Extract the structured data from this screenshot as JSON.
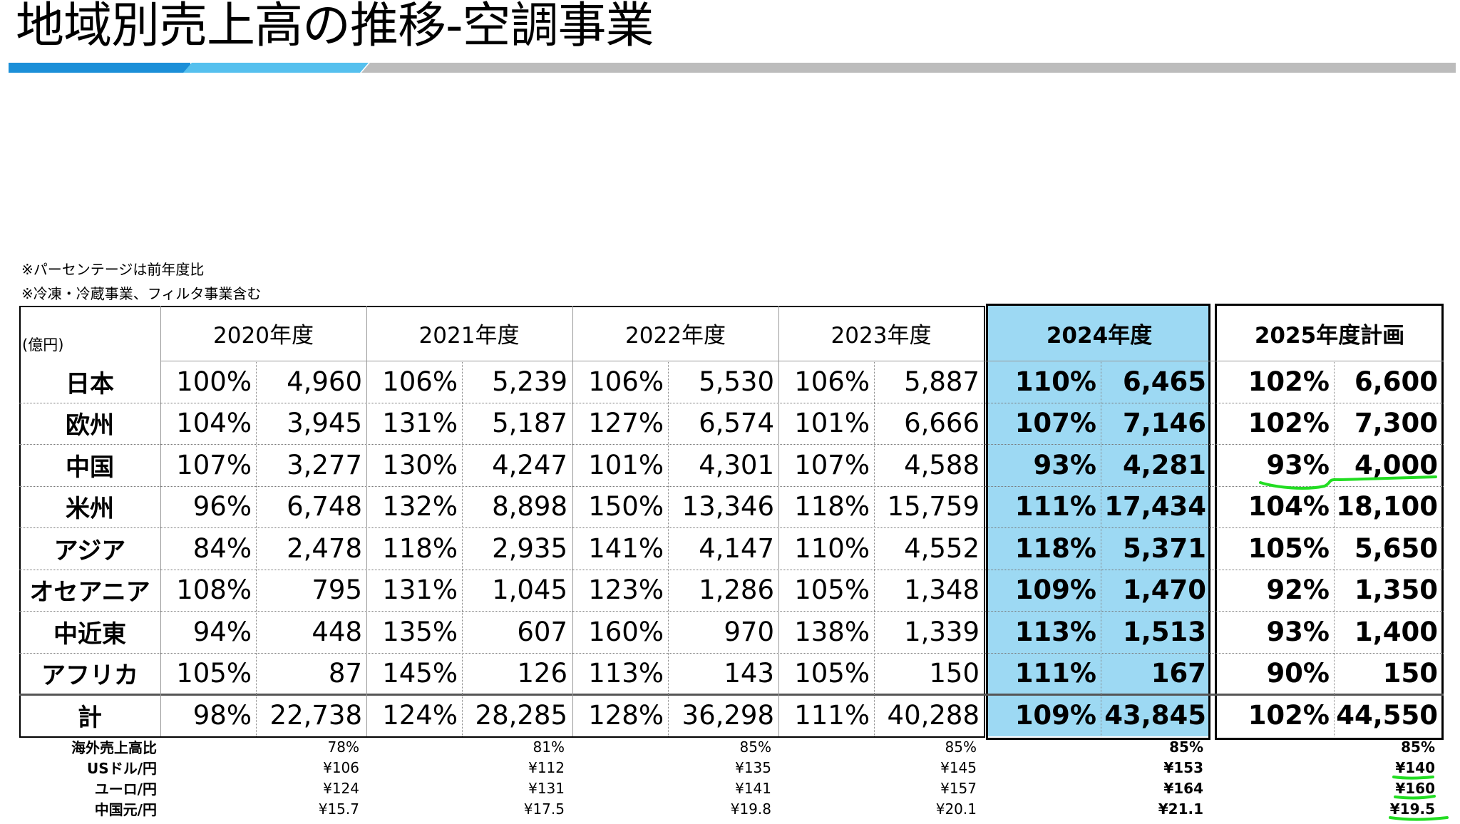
{
  "title": "地域別売上高の推移-空調事業",
  "notes": [
    "※パーセンテージは前年度比",
    "※冷凍・冷蔵事業、フィルタ事業含む"
  ],
  "table": {
    "unit_label": "(億円)",
    "years": [
      "2020年度",
      "2021年度",
      "2022年度",
      "2023年度",
      "2024年度",
      "2025年度計画"
    ],
    "rows": [
      {
        "label": "日本",
        "values": [
          [
            "100%",
            "4,960"
          ],
          [
            "106%",
            "5,239"
          ],
          [
            "106%",
            "5,530"
          ],
          [
            "106%",
            "5,887"
          ],
          [
            "110%",
            "6,465"
          ],
          [
            "102%",
            "6,600"
          ]
        ]
      },
      {
        "label": "欧州",
        "values": [
          [
            "104%",
            "3,945"
          ],
          [
            "131%",
            "5,187"
          ],
          [
            "127%",
            "6,574"
          ],
          [
            "101%",
            "6,666"
          ],
          [
            "107%",
            "7,146"
          ],
          [
            "102%",
            "7,300"
          ]
        ]
      },
      {
        "label": "中国",
        "values": [
          [
            "107%",
            "3,277"
          ],
          [
            "130%",
            "4,247"
          ],
          [
            "101%",
            "4,301"
          ],
          [
            "107%",
            "4,588"
          ],
          [
            "93%",
            "4,281"
          ],
          [
            "93%",
            "4,000"
          ]
        ]
      },
      {
        "label": "米州",
        "values": [
          [
            "96%",
            "6,748"
          ],
          [
            "132%",
            "8,898"
          ],
          [
            "150%",
            "13,346"
          ],
          [
            "118%",
            "15,759"
          ],
          [
            "111%",
            "17,434"
          ],
          [
            "104%",
            "18,100"
          ]
        ]
      },
      {
        "label": "アジア",
        "values": [
          [
            "84%",
            "2,478"
          ],
          [
            "118%",
            "2,935"
          ],
          [
            "141%",
            "4,147"
          ],
          [
            "110%",
            "4,552"
          ],
          [
            "118%",
            "5,371"
          ],
          [
            "105%",
            "5,650"
          ]
        ]
      },
      {
        "label": "オセアニア",
        "values": [
          [
            "108%",
            "795"
          ],
          [
            "131%",
            "1,045"
          ],
          [
            "123%",
            "1,286"
          ],
          [
            "105%",
            "1,348"
          ],
          [
            "109%",
            "1,470"
          ],
          [
            "92%",
            "1,350"
          ]
        ]
      },
      {
        "label": "中近東",
        "values": [
          [
            "94%",
            "448"
          ],
          [
            "135%",
            "607"
          ],
          [
            "160%",
            "970"
          ],
          [
            "138%",
            "1,339"
          ],
          [
            "113%",
            "1,513"
          ],
          [
            "93%",
            "1,400"
          ]
        ]
      },
      {
        "label": "アフリカ",
        "values": [
          [
            "105%",
            "87"
          ],
          [
            "145%",
            "126"
          ],
          [
            "113%",
            "143"
          ],
          [
            "105%",
            "150"
          ],
          [
            "111%",
            "167"
          ],
          [
            "90%",
            "150"
          ]
        ]
      },
      {
        "label": "計",
        "values": [
          [
            "98%",
            "22,738"
          ],
          [
            "124%",
            "28,285"
          ],
          [
            "128%",
            "36,298"
          ],
          [
            "111%",
            "40,288"
          ],
          [
            "109%",
            "43,845"
          ],
          [
            "102%",
            "44,550"
          ]
        ]
      }
    ]
  },
  "footer": {
    "rows": [
      {
        "label": "海外売上高比",
        "values": [
          "78%",
          "81%",
          "85%",
          "85%",
          "85%",
          "85%"
        ]
      },
      {
        "label": "USドル/円",
        "values": [
          "¥106",
          "¥112",
          "¥135",
          "¥145",
          "¥153",
          "¥140"
        ]
      },
      {
        "label": "ユーロ/円",
        "values": [
          "¥124",
          "¥131",
          "¥141",
          "¥157",
          "¥164",
          "¥160"
        ]
      },
      {
        "label": "中国元/円",
        "values": [
          "¥15.7",
          "¥17.5",
          "¥19.8",
          "¥20.1",
          "¥21.1",
          "¥19.5"
        ]
      }
    ]
  },
  "colors": {
    "highlight": "#9dd9f3",
    "bar_dark": "#1b8fd8",
    "bar_light": "#55c0ee",
    "bar_gray": "#bcbcbc",
    "annotation": "#22dd22"
  }
}
